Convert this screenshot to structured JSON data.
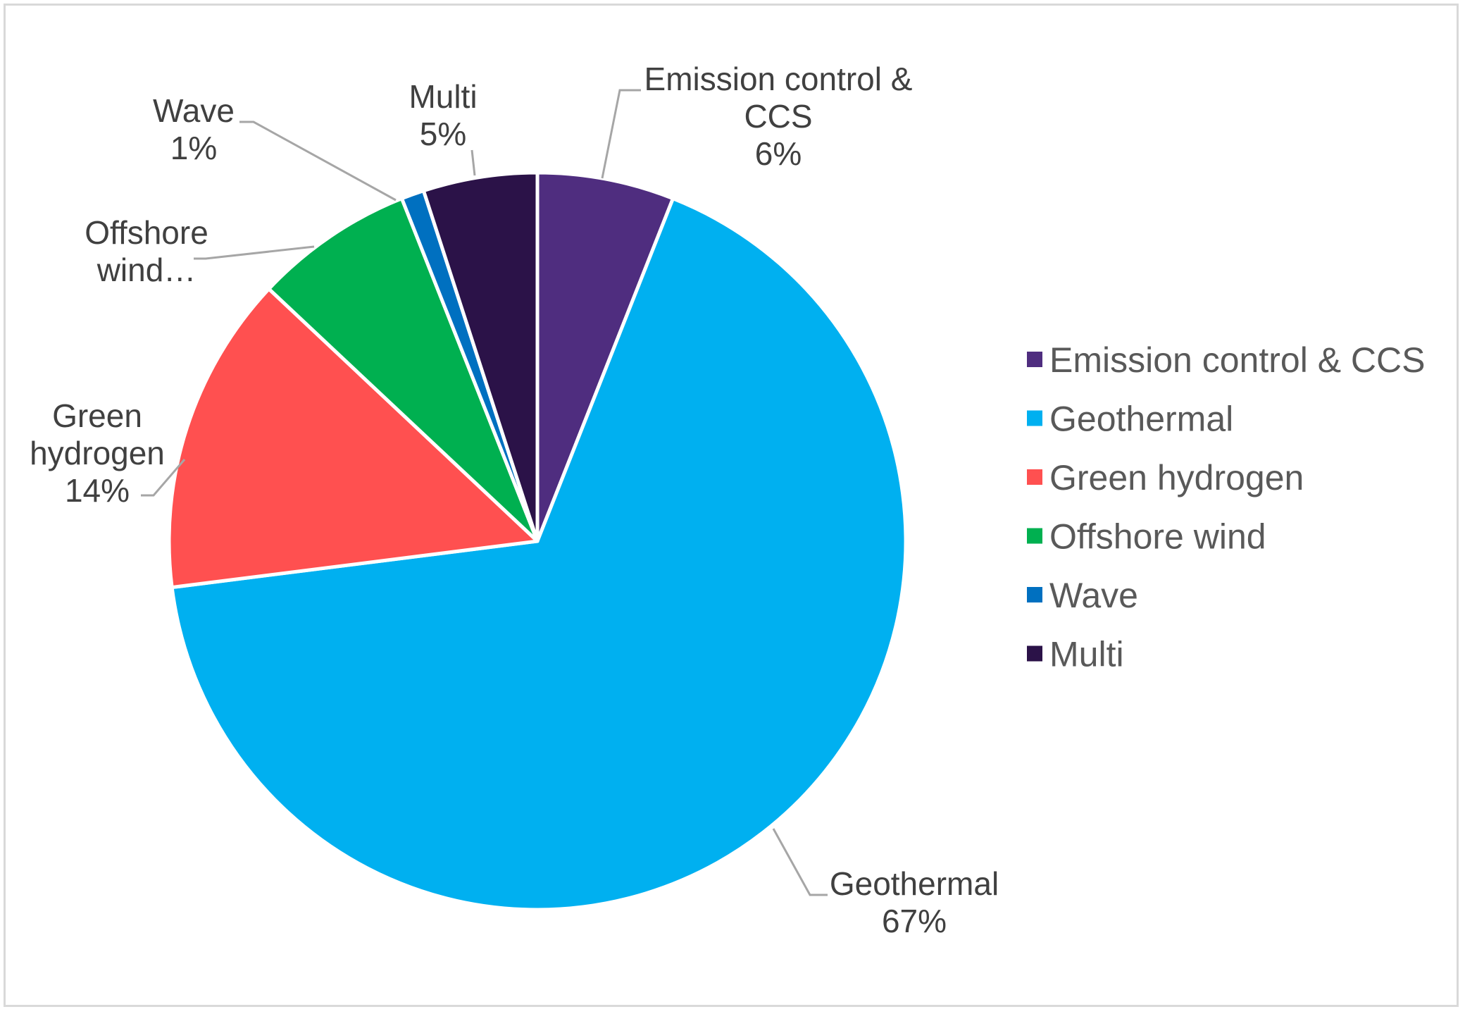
{
  "chart_data": {
    "type": "pie",
    "start_angle_deg": 0,
    "direction": "clockwise",
    "legend_position": "right",
    "slices": [
      {
        "name": "Emission control & CCS",
        "value": 6,
        "label_lines": [
          "Emission control &",
          "CCS",
          "6%"
        ],
        "color": "#4f2d7f"
      },
      {
        "name": "Geothermal",
        "value": 67,
        "label_lines": [
          "Geothermal",
          "67%"
        ],
        "color": "#00b0f0"
      },
      {
        "name": "Green hydrogen",
        "value": 14,
        "label_lines": [
          "Green",
          "hydrogen",
          "14%"
        ],
        "color": "#ff5050"
      },
      {
        "name": "Offshore wind",
        "value": 7,
        "label_lines": [
          "Offshore",
          "wind…"
        ],
        "color": "#00b050"
      },
      {
        "name": "Wave",
        "value": 1,
        "label_lines": [
          "Wave",
          "1%"
        ],
        "color": "#0070c0"
      },
      {
        "name": "Multi",
        "value": 5,
        "label_lines": [
          "Multi",
          "5%"
        ],
        "color": "#2b1248"
      }
    ]
  }
}
